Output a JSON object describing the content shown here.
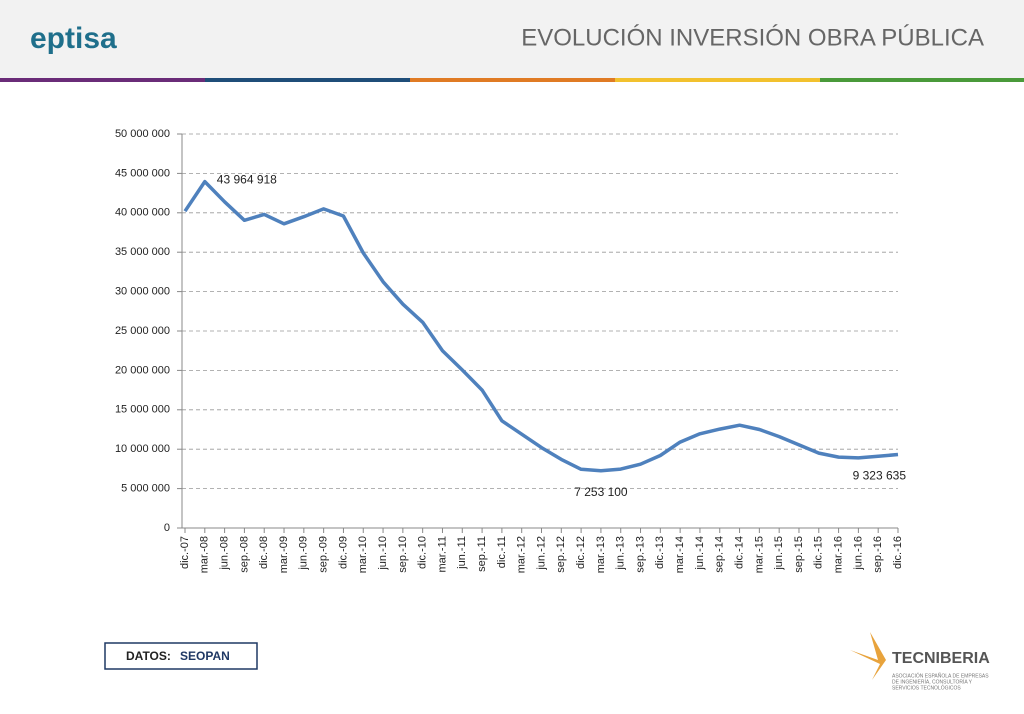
{
  "header": {
    "logo": "eptisa",
    "title": "EVOLUCIÓN INVERSIÓN OBRA PÚBLICA"
  },
  "footer": {
    "source_label": "DATOS:",
    "source": "SEOPAN",
    "logo": "TECNIBERIA",
    "logo_subtitle": [
      "ASOCIACIÓN ESPAÑOLA DE EMPRESAS",
      "DE INGENIERÍA, CONSULTORÍA Y",
      "SERVICIOS TECNOLÓGICOS"
    ]
  },
  "chart_data": {
    "type": "line",
    "categories": [
      "dic.-07",
      "mar.-08",
      "jun.-08",
      "sep.-08",
      "dic.-08",
      "mar.-09",
      "jun.-09",
      "sep.-09",
      "dic.-09",
      "mar.-10",
      "jun.-10",
      "sep.-10",
      "dic.-10",
      "mar.-11",
      "jun.-11",
      "sep.-11",
      "dic.-11",
      "mar.-12",
      "jun.-12",
      "sep.-12",
      "dic.-12",
      "mar.-13",
      "jun.-13",
      "sep.-13",
      "dic.-13",
      "mar.-14",
      "jun.-14",
      "sep.-14",
      "dic.-14",
      "mar.-15",
      "jun.-15",
      "sep.-15",
      "dic.-15",
      "mar.-16",
      "jun.-16",
      "sep.-16",
      "dic.-16"
    ],
    "series": [
      {
        "color": "#4f81bd",
        "values": [
          40200000,
          43964918,
          41400000,
          39050000,
          39800000,
          38600000,
          39500000,
          40500000,
          39600000,
          34900000,
          31250000,
          28400000,
          26100000,
          22500000,
          20050000,
          17500000,
          13600000,
          11900000,
          10200000,
          8700000,
          7450000,
          7253100,
          7480000,
          8100000,
          9200000,
          10900000,
          11950000,
          12550000,
          13050000,
          12500000,
          11600000,
          10550000,
          9500000,
          9000000,
          8900000,
          9100000,
          9323635
        ],
        "value_labels": [
          null,
          "43 964 918",
          null,
          null,
          null,
          null,
          null,
          null,
          null,
          null,
          null,
          null,
          null,
          null,
          null,
          null,
          null,
          null,
          null,
          null,
          null,
          "7 253 100",
          null,
          null,
          null,
          null,
          null,
          null,
          null,
          null,
          null,
          null,
          null,
          null,
          null,
          null,
          "9 323 635"
        ]
      }
    ],
    "ylim": [
      0,
      50000000
    ],
    "yticks": [
      0,
      {
        "value": 5000000,
        "label": "5 000 000"
      },
      {
        "value": 10000000,
        "label": "10 000 000"
      },
      {
        "value": 15000000,
        "label": "15 000 000"
      },
      {
        "value": 20000000,
        "label": "20 000 000"
      },
      {
        "value": 25000000,
        "label": "25 000 000"
      },
      {
        "value": 30000000,
        "label": "30 000 000"
      },
      {
        "value": 35000000,
        "label": "35 000 000"
      },
      {
        "value": 40000000,
        "label": "40 000 000"
      },
      {
        "value": 45000000,
        "label": "45 000 000"
      },
      {
        "value": 50000000,
        "label": "50 000 000"
      }
    ],
    "grid": true
  }
}
